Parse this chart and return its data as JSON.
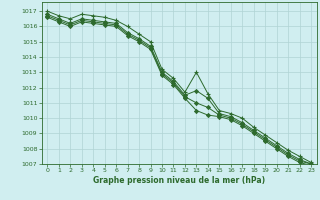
{
  "background_color": "#d0eef0",
  "grid_color": "#b0d4d4",
  "line_color": "#2d6a2d",
  "marker_color": "#2d6a2d",
  "title": "Graphe pression niveau de la mer (hPa)",
  "ylim": [
    1007,
    1017.6
  ],
  "xlim": [
    -0.5,
    23.5
  ],
  "yticks": [
    1007,
    1008,
    1009,
    1010,
    1011,
    1012,
    1013,
    1014,
    1015,
    1016,
    1017
  ],
  "xticks": [
    0,
    1,
    2,
    3,
    4,
    5,
    6,
    7,
    8,
    9,
    10,
    11,
    12,
    13,
    14,
    15,
    16,
    17,
    18,
    19,
    20,
    21,
    22,
    23
  ],
  "series1": [
    1017.0,
    1016.7,
    1016.5,
    1016.8,
    1016.7,
    1016.6,
    1016.4,
    1016.0,
    1015.5,
    1015.0,
    1013.2,
    1012.6,
    1011.7,
    1013.0,
    1011.6,
    1010.5,
    1010.3,
    1010.0,
    1009.4,
    1008.9,
    1008.4,
    1007.9,
    1007.5,
    1007.1
  ],
  "series2": [
    1016.8,
    1016.5,
    1016.2,
    1016.5,
    1016.4,
    1016.3,
    1016.2,
    1015.6,
    1015.2,
    1014.7,
    1013.0,
    1012.4,
    1011.5,
    1011.8,
    1011.3,
    1010.3,
    1010.1,
    1009.7,
    1009.2,
    1008.7,
    1008.2,
    1007.7,
    1007.3,
    1007.0
  ],
  "series3": [
    1016.6,
    1016.3,
    1016.0,
    1016.3,
    1016.2,
    1016.1,
    1016.0,
    1015.4,
    1015.0,
    1014.5,
    1012.8,
    1012.2,
    1011.3,
    1010.5,
    1010.2,
    1010.1,
    1009.9,
    1009.5,
    1009.0,
    1008.5,
    1008.0,
    1007.5,
    1007.1,
    1006.9
  ],
  "series4": [
    1016.7,
    1016.4,
    1016.1,
    1016.4,
    1016.3,
    1016.2,
    1016.1,
    1015.5,
    1015.1,
    1014.6,
    1012.9,
    1012.3,
    1011.4,
    1011.0,
    1010.7,
    1010.2,
    1010.0,
    1009.6,
    1009.1,
    1008.6,
    1008.1,
    1007.6,
    1007.2,
    1007.0
  ]
}
